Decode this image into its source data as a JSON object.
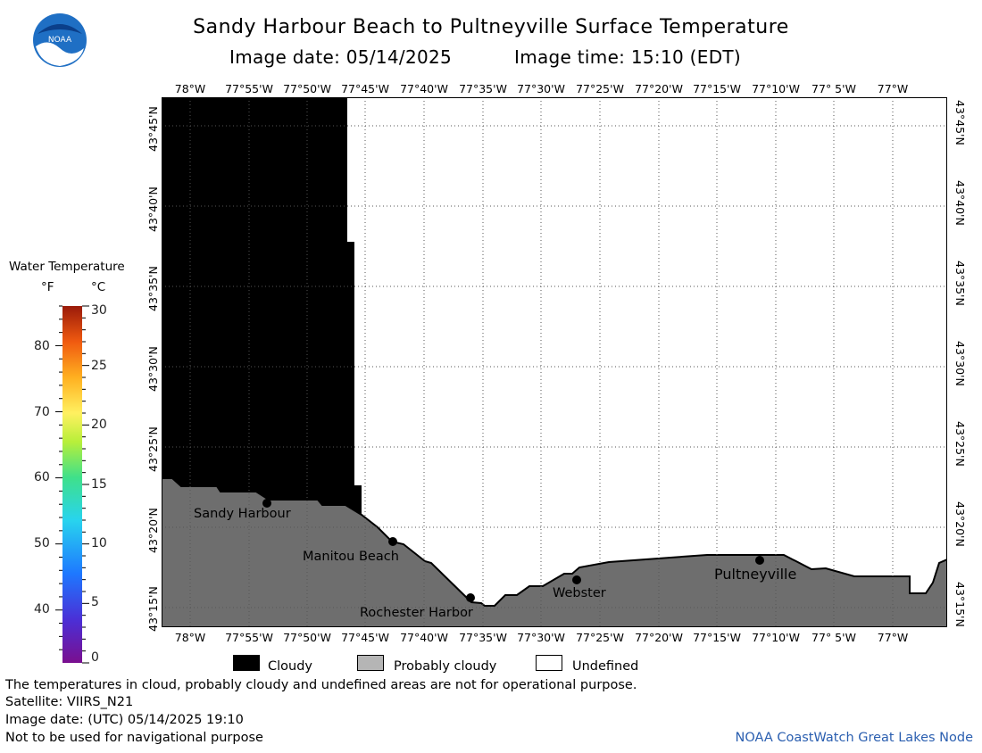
{
  "header": {
    "title": "Sandy Harbour Beach to Pultneyville Surface Temperature",
    "image_date": "Image date: 05/14/2025",
    "image_time": "Image time: 15:10 (EDT)",
    "logo_text": "NOAA"
  },
  "map": {
    "lon_labels": [
      "78°W",
      "77°55'W",
      "77°50'W",
      "77°45'W",
      "77°40'W",
      "77°35'W",
      "77°30'W",
      "77°25'W",
      "77°20'W",
      "77°15'W",
      "77°10'W",
      "77° 5'W",
      "77°W"
    ],
    "lat_labels": [
      "43°45'N",
      "43°40'N",
      "43°35'N",
      "43°30'N",
      "43°25'N",
      "43°20'N",
      "43°15'N"
    ],
    "places": [
      "Sandy Harbour",
      "Manitou Beach",
      "Rochester Harbor",
      "Webster",
      "Pultneyville"
    ],
    "colors": {
      "cloud": "#000000",
      "land": "#6e6e6e",
      "undefined": "#ffffff",
      "grid": "#555555"
    }
  },
  "legend": {
    "title": "Water Temperature",
    "unit_f": "°F",
    "unit_c": "°C",
    "f_ticks": [
      "80",
      "70",
      "60",
      "50",
      "40"
    ],
    "c_ticks": [
      "30",
      "25",
      "20",
      "15",
      "10",
      "5",
      "0"
    ]
  },
  "key": {
    "cloudy": "Cloudy",
    "probably_cloudy": "Probably cloudy",
    "undefined": "Undefined"
  },
  "footer": {
    "line1": "The temperatures in cloud, probably cloudy and undefined areas are not for operational purpose.",
    "line2": "Satellite: VIIRS_N21",
    "line3": "Image date: (UTC) 05/14/2025  19:10",
    "line4": "Not to be used for navigational purpose",
    "credit": "NOAA CoastWatch Great Lakes Node"
  }
}
